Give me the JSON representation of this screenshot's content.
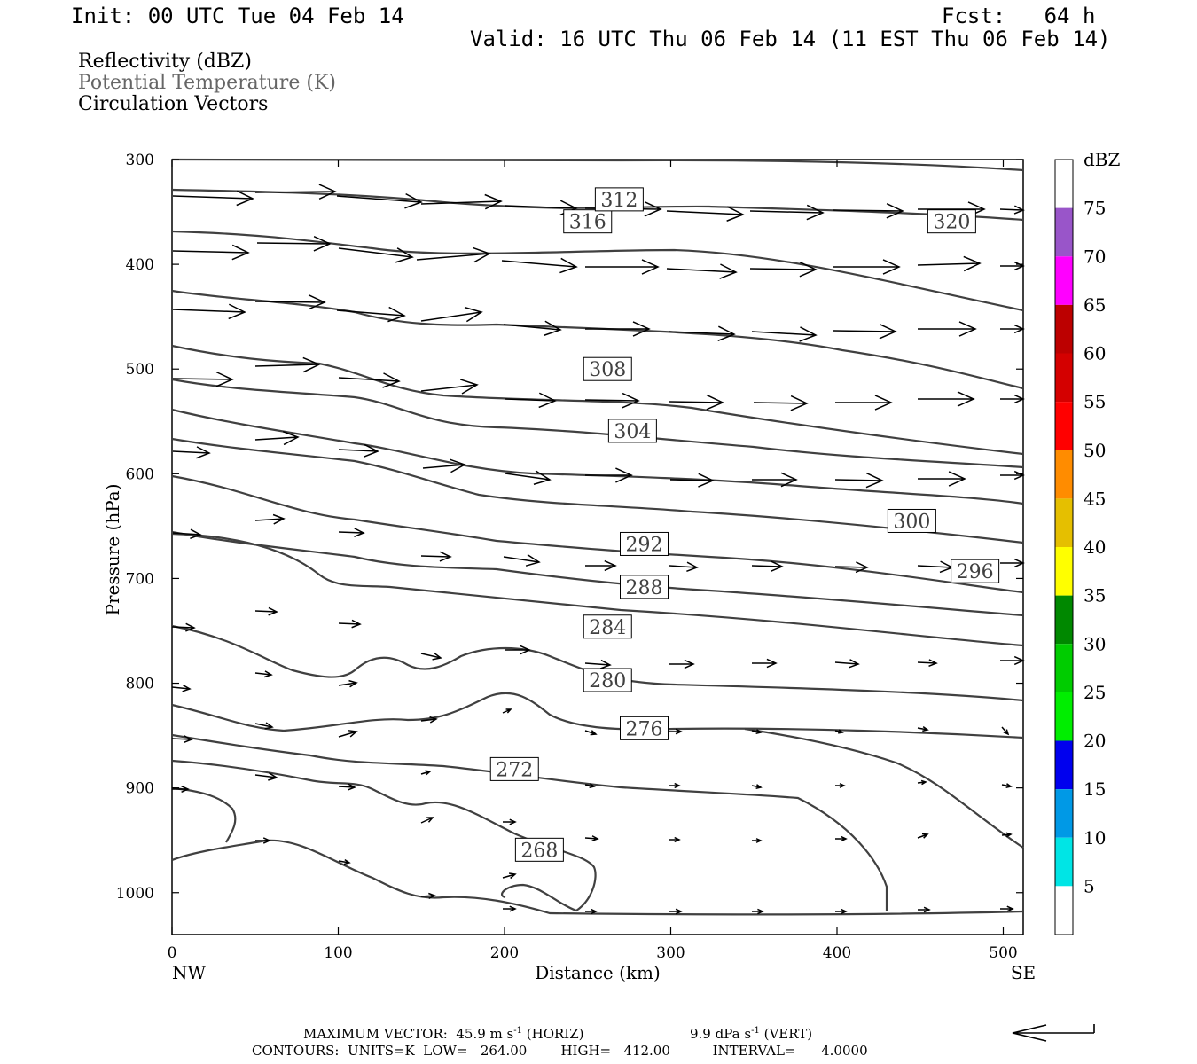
{
  "header": {
    "init": "Init: 00 UTC Tue 04 Feb 14",
    "fcst": "Fcst:   64 h",
    "valid": "Valid: 16 UTC Thu 06 Feb 14 (11 EST Thu 06 Feb 14)",
    "title_line1": "Reflectivity (dBZ)",
    "title_line2": "Potential Temperature (K)",
    "title_line3": "Circulation Vectors",
    "title_line2_color": "#666666"
  },
  "chart_data": {
    "type": "contour-cross-section",
    "xlabel": "Distance (km)",
    "ylabel": "Pressure (hPa)",
    "xlim": [
      0,
      512
    ],
    "ylim": [
      1040,
      300
    ],
    "x_ticks": [
      0,
      100,
      200,
      300,
      400,
      500
    ],
    "y_ticks": [
      300,
      400,
      500,
      600,
      700,
      800,
      900,
      1000
    ],
    "x_end_left": "NW",
    "x_end_right": "SE",
    "contour_units": "K",
    "contour_labels": [
      {
        "value": "316",
        "x": 250,
        "p": 359
      },
      {
        "value": "320",
        "x": 469,
        "p": 359
      },
      {
        "value": "312",
        "x": 269,
        "p": 338
      },
      {
        "value": "308",
        "x": 262,
        "p": 500
      },
      {
        "value": "304",
        "x": 277,
        "p": 559
      },
      {
        "value": "300",
        "x": 445,
        "p": 645
      },
      {
        "value": "292",
        "x": 284,
        "p": 667
      },
      {
        "value": "296",
        "x": 483,
        "p": 693
      },
      {
        "value": "288",
        "x": 284,
        "p": 708
      },
      {
        "value": "284",
        "x": 262,
        "p": 746
      },
      {
        "value": "280",
        "x": 262,
        "p": 797
      },
      {
        "value": "276",
        "x": 284,
        "p": 843
      },
      {
        "value": "272",
        "x": 206,
        "p": 882
      },
      {
        "value": "268",
        "x": 221,
        "p": 959
      }
    ],
    "colorbar": {
      "title": "dBZ",
      "levels": [
        "5",
        "10",
        "15",
        "20",
        "25",
        "30",
        "35",
        "40",
        "45",
        "50",
        "55",
        "60",
        "65",
        "70",
        "75"
      ],
      "colors": [
        "#ffffff",
        "#00e5e5",
        "#0099e6",
        "#0000ee",
        "#00ee00",
        "#00cc00",
        "#008800",
        "#ffff00",
        "#e5bf00",
        "#ff8c00",
        "#ff0000",
        "#d40000",
        "#bc0000",
        "#ff00ff",
        "#9955c9",
        "#ffffff"
      ]
    },
    "legend": {
      "max_vector_label": "MAXIMUM VECTOR:",
      "max_horiz": "45.9 m s",
      "horiz_exp": "-1",
      "horiz_tag": "(HORIZ)",
      "max_vert": "9.9 dPa s",
      "vert_exp": "-1",
      "vert_tag": "(VERT)",
      "contours_line": "CONTOURS:  UNITS=K  LOW=   264.00        HIGH=   412.00          INTERVAL=      4.0000"
    }
  }
}
